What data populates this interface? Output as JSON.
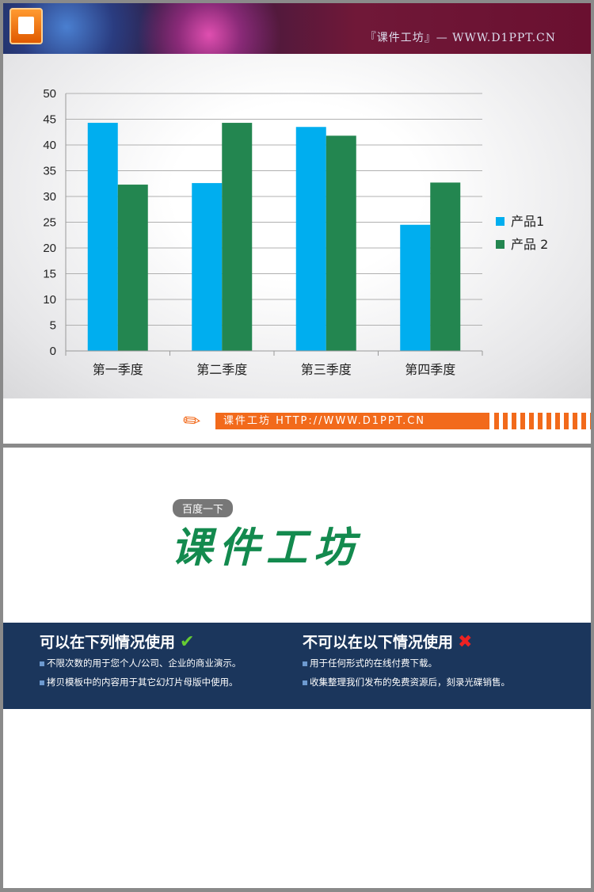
{
  "header": {
    "banner_text": "『课件工坊』— WWW.D1PPT.CN",
    "logo_icon": "powerpoint-icon"
  },
  "chart_data": {
    "type": "bar",
    "categories": [
      "第一季度",
      "第二季度",
      "第三季度",
      "第四季度"
    ],
    "series": [
      {
        "name": "产品1",
        "values": [
          44.3,
          32.6,
          43.5,
          24.5
        ],
        "color": "#00aeef"
      },
      {
        "name": "产品 2",
        "values": [
          32.3,
          44.3,
          41.8,
          32.7
        ],
        "color": "#238650"
      }
    ],
    "ylim": [
      0,
      50
    ],
    "yticks": [
      0,
      5,
      10,
      15,
      20,
      25,
      30,
      35,
      40,
      45,
      50
    ],
    "grid": true,
    "legend": "right"
  },
  "footer": {
    "text": "课件工坊 HTTP://WWW.D1PPT.CN"
  },
  "slide2": {
    "badge": "百度一下",
    "brand": "课件工坊",
    "allowed": {
      "title": "可以在下列情况使用",
      "items": [
        "不限次数的用于您个人/公司、企业的商业演示。",
        "拷贝模板中的内容用于其它幻灯片母版中使用。"
      ]
    },
    "forbidden": {
      "title": "不可以在以下情况使用",
      "items": [
        "用于任何形式的在线付费下载。",
        "收集整理我们发布的免费资源后，刻录光碟销售。"
      ]
    }
  }
}
